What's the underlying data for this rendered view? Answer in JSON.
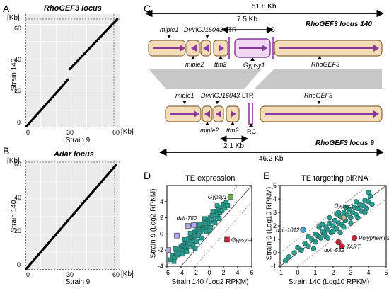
{
  "panels": {
    "A": {
      "letter": "A",
      "title": "RhoGEF3 locus",
      "y_unit": "[Kb]",
      "x_unit": "[Kb]",
      "ylabel": "Strain 140",
      "xlabel": "Strain 9",
      "y_ticks": [
        "0",
        "20",
        "40",
        "60"
      ],
      "x_ticks": [
        "0",
        "30",
        "60"
      ]
    },
    "B": {
      "letter": "B",
      "title": "Adar locus",
      "y_unit": "[Kb]",
      "x_unit": "[Kb]",
      "ylabel": "Strain 140",
      "xlabel": "Strain 9",
      "y_ticks": [
        "0",
        "20",
        "40",
        "60"
      ],
      "x_ticks": [
        "0",
        "30",
        "60"
      ]
    },
    "C": {
      "letter": "C",
      "top_span": "51.8 Kb",
      "inner_span_top": "7.5 Kb",
      "locus_140": "RhoGEF3 locus 140",
      "locus_9": "RhoGEF3 locus 9",
      "bottom_span": "46.2 Kb",
      "inner_span_bottom": "2.1 Kb",
      "genes_top_above": [
        "miple1",
        "Dvir\\GJ16043",
        "LTR",
        "RC"
      ],
      "genes_top_below": [
        "miple2",
        "ttm2",
        "Gypsy1",
        "RhoGEF3"
      ],
      "genes_bottom_above": [
        "miple1",
        "Dvir\\GJ16043",
        "LTR",
        "RhoGEF3"
      ],
      "genes_bottom_below": [
        "miple2",
        "ttm2",
        "RC"
      ]
    },
    "D": {
      "letter": "D",
      "title": "TE expression",
      "xlabel": "Strain 140 (Log2 RPKM)",
      "ylabel": "Strain 9 (Log2 RPKM)",
      "labels": [
        "Gypsy1",
        "dvir-750",
        "Gypsy-4"
      ]
    },
    "E": {
      "letter": "E",
      "title": "TE targeting piRNA",
      "xlabel": "Strain 140 (Log10 RPKM)",
      "ylabel": "Strain 9 (Log10 RPKM)",
      "labels": [
        "Gypsy1",
        "dvir-1012",
        "Polyphemus",
        "TART",
        "dvir-532"
      ]
    }
  },
  "chart_data": [
    {
      "type": "line",
      "title": "RhoGEF3 locus",
      "xlabel": "Strain 9",
      "ylabel": "Strain 140",
      "xlim": [
        0,
        62
      ],
      "ylim": [
        0,
        66
      ],
      "series": [
        {
          "x": [
            0,
            28
          ],
          "y": [
            0,
            28
          ]
        },
        {
          "x": [
            29,
            60
          ],
          "y": [
            34,
            63
          ]
        }
      ],
      "grid": true
    },
    {
      "type": "line",
      "title": "Adar locus",
      "xlabel": "Strain 9",
      "ylabel": "Strain 140",
      "xlim": [
        0,
        62
      ],
      "ylim": [
        0,
        62
      ],
      "series": [
        {
          "x": [
            0,
            59
          ],
          "y": [
            0,
            59
          ]
        }
      ],
      "grid": true
    },
    {
      "type": "scatter",
      "title": "TE expression",
      "xlabel": "Strain 140 (Log2 RPKM)",
      "ylabel": "Strain 9 (Log2 RPKM)",
      "xlim": [
        -6,
        6
      ],
      "ylim": [
        -4,
        6
      ],
      "x_ticks": [
        -6,
        -4,
        -2,
        0,
        2,
        4,
        6
      ],
      "y_ticks": [
        -4,
        -2,
        0,
        2,
        4
      ],
      "highlighted": [
        {
          "label": "Gypsy1",
          "x": 3.0,
          "y": 4.6,
          "color": "#6aa84f"
        },
        {
          "label": "dvir-750",
          "x": -3.0,
          "y": 1.0,
          "color": "#b4a7f0"
        },
        {
          "label": "Gypsy-4",
          "x": 2.5,
          "y": -0.7,
          "color": "#cc2233"
        },
        {
          "label": "",
          "x": -5.8,
          "y": -2.0,
          "color": "#b4a7f0"
        },
        {
          "label": "",
          "x": -4.6,
          "y": -0.2,
          "color": "#b4a7f0"
        },
        {
          "label": "",
          "x": -2.2,
          "y": 1.1,
          "color": "#b4a7f0"
        }
      ],
      "points": [
        [
          -5.5,
          -3.2
        ],
        [
          -5.2,
          -2.7
        ],
        [
          -4.9,
          -2.9
        ],
        [
          -4.7,
          -2.3
        ],
        [
          -4.5,
          -2.6
        ],
        [
          -4.3,
          -1.9
        ],
        [
          -4.2,
          -2.4
        ],
        [
          -4.0,
          -1.6
        ],
        [
          -3.9,
          -2.1
        ],
        [
          -3.7,
          -1.4
        ],
        [
          -3.6,
          -2.0
        ],
        [
          -3.4,
          -1.1
        ],
        [
          -3.3,
          -1.7
        ],
        [
          -3.1,
          -0.9
        ],
        [
          -3.0,
          -1.5
        ],
        [
          -2.9,
          -0.6
        ],
        [
          -2.8,
          -1.2
        ],
        [
          -2.6,
          -0.4
        ],
        [
          -2.5,
          -1.0
        ],
        [
          -2.4,
          -0.1
        ],
        [
          -2.2,
          -0.8
        ],
        [
          -2.1,
          0.2
        ],
        [
          -2.0,
          -0.5
        ],
        [
          -1.9,
          0.4
        ],
        [
          -1.7,
          -0.2
        ],
        [
          -1.6,
          0.6
        ],
        [
          -1.5,
          0.0
        ],
        [
          -1.3,
          0.8
        ],
        [
          -1.2,
          0.3
        ],
        [
          -1.0,
          1.0
        ],
        [
          -0.9,
          0.5
        ],
        [
          -0.8,
          1.3
        ],
        [
          -0.6,
          0.8
        ],
        [
          -0.5,
          1.5
        ],
        [
          -0.3,
          1.0
        ],
        [
          -0.2,
          1.8
        ],
        [
          0.0,
          1.3
        ],
        [
          0.1,
          2.0
        ],
        [
          0.3,
          1.6
        ],
        [
          0.4,
          2.3
        ],
        [
          0.6,
          1.8
        ],
        [
          0.7,
          2.6
        ],
        [
          0.9,
          2.1
        ],
        [
          1.0,
          2.8
        ],
        [
          1.2,
          2.4
        ],
        [
          1.3,
          3.1
        ],
        [
          1.5,
          2.7
        ],
        [
          1.6,
          3.3
        ],
        [
          1.8,
          2.9
        ],
        [
          2.0,
          3.6
        ],
        [
          2.2,
          3.2
        ],
        [
          2.4,
          3.9
        ],
        [
          2.6,
          3.5
        ],
        [
          -3.8,
          -2.5
        ],
        [
          -3.2,
          -2.2
        ],
        [
          -2.3,
          -1.5
        ],
        [
          -1.8,
          -0.9
        ],
        [
          -1.1,
          -0.5
        ],
        [
          -0.4,
          0.3
        ],
        [
          0.2,
          0.8
        ],
        [
          0.8,
          1.4
        ],
        [
          1.4,
          1.9
        ],
        [
          -4.8,
          -1.8
        ],
        [
          -3.5,
          -0.7
        ],
        [
          -2.7,
          0.1
        ],
        [
          -1.4,
          1.2
        ],
        [
          -0.7,
          1.9
        ],
        [
          0.5,
          2.8
        ],
        [
          1.1,
          3.5
        ],
        [
          -5.0,
          -3.4
        ],
        [
          -2.0,
          -1.8
        ],
        [
          0.0,
          0.4
        ]
      ]
    },
    {
      "type": "scatter",
      "title": "TE targeting piRNA",
      "xlabel": "Strain 140 (Log10 RPKM)",
      "ylabel": "Strain 9 (Log10 RPKM)",
      "xlim": [
        -1,
        5
      ],
      "ylim": [
        -1,
        5
      ],
      "x_ticks": [
        -1,
        0,
        1,
        2,
        3,
        4,
        5
      ],
      "y_ticks": [
        -1,
        0,
        1,
        2,
        3,
        4,
        5
      ],
      "highlighted": [
        {
          "label": "Gypsy1",
          "x": 2.6,
          "y": 2.6,
          "color": "#b8b28a"
        },
        {
          "label": "dvir-1012",
          "x": 0.3,
          "y": 1.7,
          "color": "#3ea6e0"
        },
        {
          "label": "Polyphemus",
          "x": 3.2,
          "y": 1.1,
          "color": "#cc2233"
        },
        {
          "label": "TART",
          "x": 2.5,
          "y": 0.5,
          "color": "#cc2233"
        },
        {
          "label": "dvir-532",
          "x": 2.3,
          "y": 0.8,
          "color": "#cc2233"
        }
      ],
      "points": [
        [
          -0.5,
          -0.3
        ],
        [
          -0.2,
          0.0
        ],
        [
          0.0,
          0.4
        ],
        [
          0.2,
          0.2
        ],
        [
          0.4,
          0.7
        ],
        [
          0.6,
          0.5
        ],
        [
          0.8,
          1.0
        ],
        [
          1.0,
          0.8
        ],
        [
          1.1,
          1.3
        ],
        [
          1.3,
          1.1
        ],
        [
          1.4,
          1.6
        ],
        [
          1.5,
          1.4
        ],
        [
          1.6,
          1.9
        ],
        [
          1.7,
          1.7
        ],
        [
          1.8,
          2.2
        ],
        [
          1.9,
          1.5
        ],
        [
          2.0,
          2.0
        ],
        [
          2.1,
          2.4
        ],
        [
          2.2,
          1.8
        ],
        [
          2.3,
          2.2
        ],
        [
          2.4,
          2.7
        ],
        [
          2.5,
          2.1
        ],
        [
          2.6,
          3.0
        ],
        [
          2.7,
          2.4
        ],
        [
          2.8,
          2.8
        ],
        [
          2.9,
          3.2
        ],
        [
          3.0,
          2.6
        ],
        [
          3.1,
          3.0
        ],
        [
          3.2,
          3.4
        ],
        [
          3.3,
          2.8
        ],
        [
          3.4,
          3.3
        ],
        [
          3.5,
          3.6
        ],
        [
          3.6,
          3.1
        ],
        [
          3.7,
          3.5
        ],
        [
          3.8,
          3.9
        ],
        [
          3.9,
          3.3
        ],
        [
          4.0,
          3.8
        ],
        [
          4.1,
          4.2
        ],
        [
          4.2,
          3.6
        ],
        [
          4.0,
          4.5
        ],
        [
          1.2,
          1.9
        ],
        [
          1.6,
          1.2
        ],
        [
          2.0,
          1.6
        ],
        [
          2.3,
          3.0
        ],
        [
          2.7,
          3.4
        ],
        [
          3.3,
          3.8
        ],
        [
          0.6,
          1.2
        ],
        [
          1.0,
          1.4
        ],
        [
          1.4,
          2.1
        ],
        [
          1.8,
          2.6
        ],
        [
          2.2,
          2.9
        ],
        [
          2.6,
          1.9
        ],
        [
          3.0,
          2.2
        ],
        [
          3.4,
          2.6
        ],
        [
          3.8,
          3.0
        ],
        [
          0.9,
          0.3
        ],
        [
          1.7,
          1.1
        ],
        [
          2.4,
          1.5
        ],
        [
          -0.7,
          -0.6
        ]
      ]
    }
  ]
}
